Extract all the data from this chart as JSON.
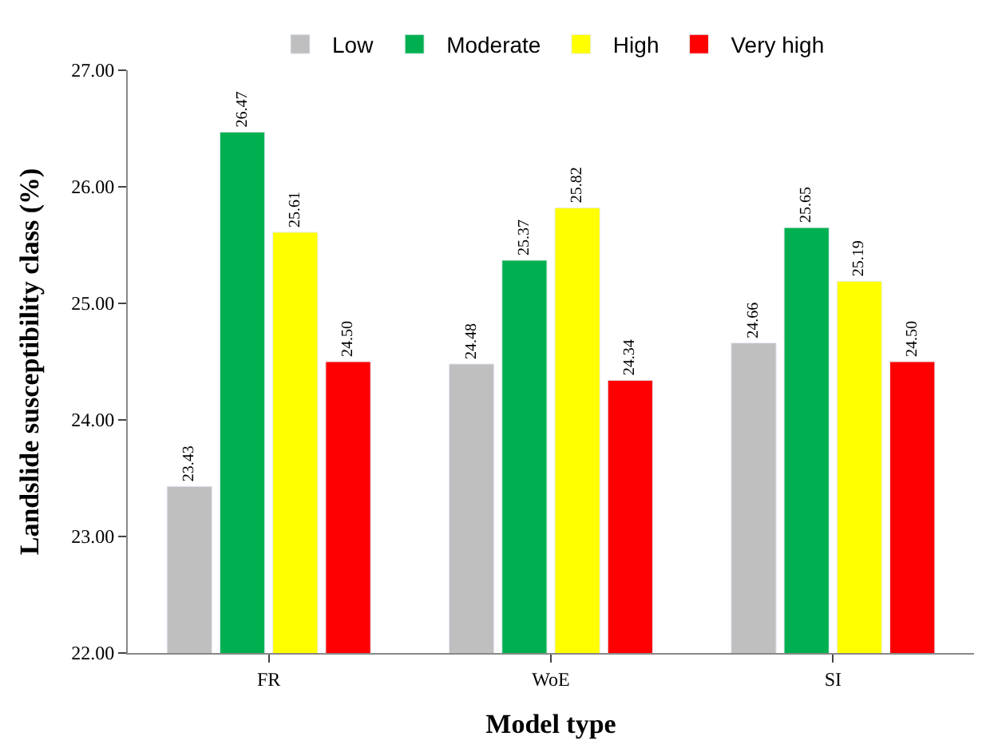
{
  "chart_data": {
    "type": "bar",
    "xlabel": "Model type",
    "ylabel": "Landslide susceptibility class (%)",
    "categories": [
      "FR",
      "WoE",
      "SI"
    ],
    "series": [
      {
        "name": "Low",
        "color": "#bfbfbf",
        "values": [
          23.43,
          24.48,
          24.66
        ],
        "value_labels": [
          "23.43",
          "24.48",
          "24.66"
        ]
      },
      {
        "name": "Moderate",
        "color": "#00b050",
        "values": [
          26.47,
          25.37,
          25.65
        ],
        "value_labels": [
          "26.47",
          "25.37",
          "25.65"
        ]
      },
      {
        "name": "High",
        "color": "#ffff00",
        "values": [
          25.61,
          25.82,
          25.19
        ],
        "value_labels": [
          "25.61",
          "25.82",
          "25.19"
        ]
      },
      {
        "name": "Very high",
        "color": "#ff0000",
        "values": [
          24.5,
          24.34,
          24.5
        ],
        "value_labels": [
          "24.50",
          "24.34",
          "24.50"
        ]
      }
    ],
    "ylim": [
      22,
      27
    ],
    "yticks": [
      {
        "value": 22,
        "label": "22.00"
      },
      {
        "value": 23,
        "label": "23.00"
      },
      {
        "value": 24,
        "label": "24.00"
      },
      {
        "value": 25,
        "label": "25.00"
      },
      {
        "value": 26,
        "label": "26.00"
      },
      {
        "value": 27,
        "label": "27.00"
      }
    ],
    "legend": "top"
  }
}
